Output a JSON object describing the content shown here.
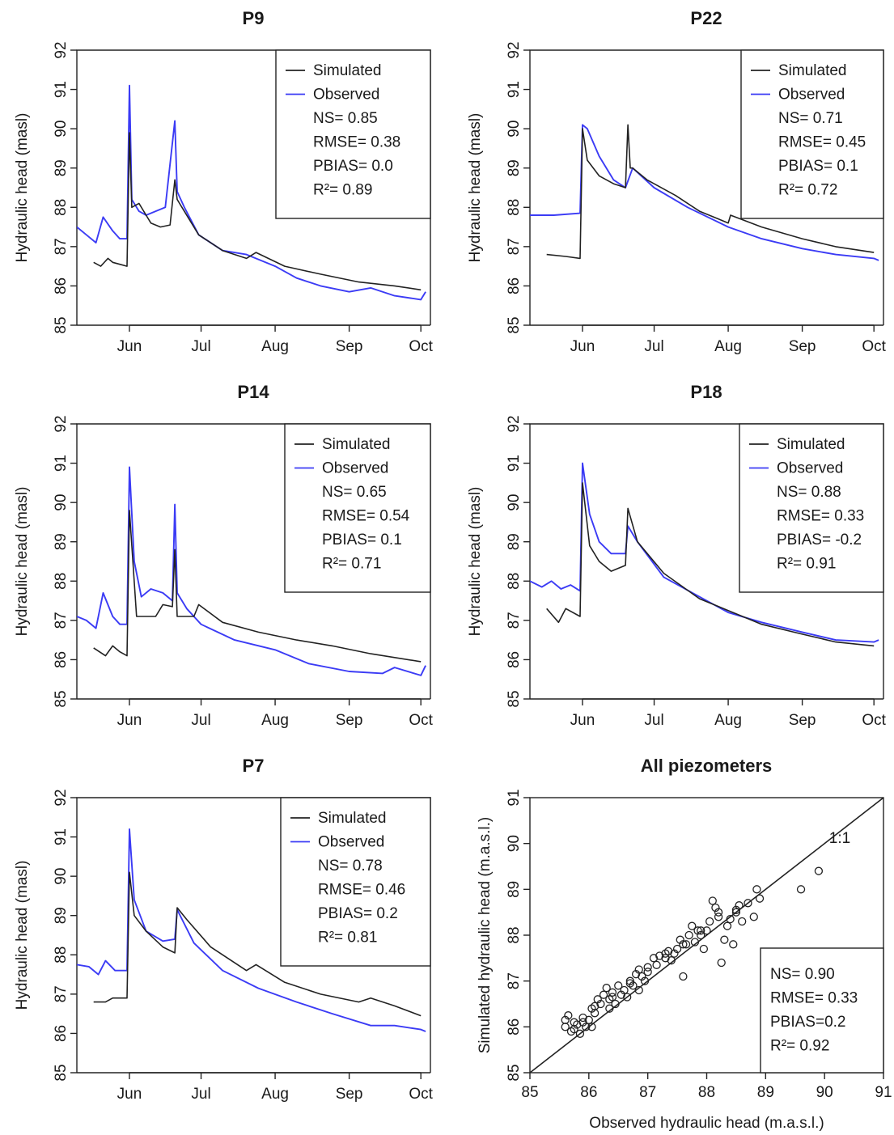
{
  "chart_data": [
    {
      "type": "line",
      "title": "P9",
      "ylabel": "Hydraulic head (masl)",
      "xlabel": "",
      "x_ticks": [
        "Jun",
        "Jul",
        "Aug",
        "Sep",
        "Oct"
      ],
      "ylim": [
        85,
        92
      ],
      "y_ticks": [
        "85",
        "86",
        "87",
        "88",
        "89",
        "90",
        "91",
        "92"
      ],
      "legend": [
        "Simulated",
        "Observed"
      ],
      "stats": [
        "NS= 0.85",
        "RMSE= 0.38",
        "PBIAS= 0.0",
        "R²= 0.89"
      ],
      "legend_position": "top-right",
      "colors": {
        "simulated": "#222222",
        "observed": "#3b3bf5"
      },
      "series": [
        {
          "name": "Simulated",
          "x": [
            "May 17",
            "May 20",
            "May 23",
            "May 25",
            "May 28",
            "May 31",
            "Jun 1",
            "Jun 2",
            "Jun 5",
            "Jun 8",
            "Jun 10",
            "Jun 14",
            "Jun 18",
            "Jun 20",
            "Jun 21",
            "Jun 23",
            "Jun 30",
            "Jul 10",
            "Jul 20",
            "Jul 24",
            "Aug 5",
            "Aug 20",
            "Sep 5",
            "Sep 20",
            "Oct 1"
          ],
          "y": [
            86.6,
            86.5,
            86.7,
            86.6,
            86.55,
            86.5,
            89.9,
            88.0,
            88.1,
            87.8,
            87.6,
            87.5,
            87.55,
            88.7,
            88.2,
            88.0,
            87.3,
            86.9,
            86.7,
            86.85,
            86.5,
            86.3,
            86.1,
            86.0,
            85.9
          ]
        },
        {
          "name": "Observed",
          "x": [
            "May 10",
            "May 14",
            "May 18",
            "May 21",
            "May 25",
            "May 28",
            "May 31",
            "Jun 1",
            "Jun 2",
            "Jun 5",
            "Jun 8",
            "Jun 12",
            "Jun 16",
            "Jun 20",
            "Jun 21",
            "Jun 24",
            "Jun 30",
            "Jul 10",
            "Jul 20",
            "Aug 1",
            "Aug 10",
            "Aug 20",
            "Sep 1",
            "Sep 10",
            "Sep 20",
            "Oct 1",
            "Oct 3"
          ],
          "y": [
            87.5,
            87.3,
            87.1,
            87.75,
            87.4,
            87.2,
            87.2,
            91.1,
            88.2,
            87.9,
            87.8,
            87.9,
            88.0,
            90.2,
            88.4,
            88.0,
            87.3,
            86.9,
            86.8,
            86.5,
            86.2,
            86.0,
            85.85,
            85.95,
            85.75,
            85.65,
            85.85
          ]
        }
      ]
    },
    {
      "type": "line",
      "title": "P22",
      "ylabel": "Hydraulic head (masl)",
      "xlabel": "",
      "x_ticks": [
        "Jun",
        "Jul",
        "Aug",
        "Sep",
        "Oct"
      ],
      "ylim": [
        85,
        92
      ],
      "y_ticks": [
        "85",
        "86",
        "87",
        "88",
        "89",
        "90",
        "91",
        "92"
      ],
      "legend": [
        "Simulated",
        "Observed"
      ],
      "stats": [
        "NS= 0.71",
        "RMSE= 0.45",
        "PBIAS= 0.1",
        "R²= 0.72"
      ],
      "legend_position": "top-right",
      "colors": {
        "simulated": "#222222",
        "observed": "#3b3bf5"
      },
      "series": [
        {
          "name": "Simulated",
          "x": [
            "May 17",
            "May 25",
            "May 31",
            "Jun 1",
            "Jun 3",
            "Jun 8",
            "Jun 14",
            "Jun 19",
            "Jun 20",
            "Jun 21",
            "Jun 22",
            "Jun 28",
            "Jul 10",
            "Jul 20",
            "Aug 1",
            "Aug 2",
            "Aug 15",
            "Sep 1",
            "Sep 15",
            "Oct 1"
          ],
          "y": [
            86.8,
            86.75,
            86.7,
            90.0,
            89.2,
            88.8,
            88.6,
            88.5,
            90.1,
            89.0,
            89.0,
            88.7,
            88.3,
            87.9,
            87.6,
            87.8,
            87.5,
            87.2,
            87.0,
            86.85
          ]
        },
        {
          "name": "Observed",
          "x": [
            "May 10",
            "May 20",
            "May 31",
            "Jun 1",
            "Jun 3",
            "Jun 8",
            "Jun 14",
            "Jun 19",
            "Jun 22",
            "Jul 1",
            "Jul 15",
            "Aug 1",
            "Aug 15",
            "Sep 1",
            "Sep 15",
            "Oct 1",
            "Oct 3"
          ],
          "y": [
            87.8,
            87.8,
            87.85,
            90.1,
            90.0,
            89.3,
            88.7,
            88.5,
            89.0,
            88.5,
            88.0,
            87.5,
            87.2,
            86.95,
            86.8,
            86.7,
            86.65
          ]
        }
      ]
    },
    {
      "type": "line",
      "title": "P14",
      "ylabel": "Hydraulic head (masl)",
      "xlabel": "",
      "x_ticks": [
        "Jun",
        "Jul",
        "Aug",
        "Sep",
        "Oct"
      ],
      "ylim": [
        85,
        92
      ],
      "y_ticks": [
        "85",
        "86",
        "87",
        "88",
        "89",
        "90",
        "91",
        "92"
      ],
      "legend": [
        "Simulated",
        "Observed"
      ],
      "stats": [
        "NS= 0.65",
        "RMSE= 0.54",
        "PBIAS= 0.1",
        "R²= 0.71"
      ],
      "legend_position": "top-right",
      "colors": {
        "simulated": "#222222",
        "observed": "#3b3bf5"
      },
      "series": [
        {
          "name": "Simulated",
          "x": [
            "May 17",
            "May 22",
            "May 25",
            "May 28",
            "May 31",
            "Jun 1",
            "Jun 4",
            "Jun 7",
            "Jun 12",
            "Jun 15",
            "Jun 19",
            "Jun 20",
            "Jun 21",
            "Jun 28",
            "Jun 30",
            "Jul 10",
            "Jul 25",
            "Aug 10",
            "Aug 25",
            "Sep 10",
            "Oct 1"
          ],
          "y": [
            86.3,
            86.1,
            86.35,
            86.2,
            86.1,
            89.8,
            87.1,
            87.1,
            87.1,
            87.4,
            87.35,
            88.8,
            87.1,
            87.1,
            87.4,
            86.95,
            86.7,
            86.5,
            86.35,
            86.15,
            85.95
          ]
        },
        {
          "name": "Observed",
          "x": [
            "May 10",
            "May 14",
            "May 18",
            "May 21",
            "May 25",
            "May 28",
            "May 31",
            "Jun 1",
            "Jun 3",
            "Jun 6",
            "Jun 10",
            "Jun 15",
            "Jun 19",
            "Jun 20",
            "Jun 21",
            "Jun 25",
            "Jul 1",
            "Jul 15",
            "Aug 1",
            "Aug 15",
            "Sep 1",
            "Sep 15",
            "Sep 20",
            "Oct 1",
            "Oct 3"
          ],
          "y": [
            87.1,
            87.0,
            86.8,
            87.7,
            87.1,
            86.9,
            86.9,
            90.9,
            88.5,
            87.6,
            87.8,
            87.7,
            87.5,
            89.95,
            87.7,
            87.3,
            86.9,
            86.5,
            86.25,
            85.9,
            85.7,
            85.65,
            85.8,
            85.6,
            85.85
          ]
        }
      ]
    },
    {
      "type": "line",
      "title": "P18",
      "ylabel": "Hydraulic head (masl)",
      "xlabel": "",
      "x_ticks": [
        "Jun",
        "Jul",
        "Aug",
        "Sep",
        "Oct"
      ],
      "ylim": [
        85,
        92
      ],
      "y_ticks": [
        "85",
        "86",
        "87",
        "88",
        "89",
        "90",
        "91",
        "92"
      ],
      "legend": [
        "Simulated",
        "Observed"
      ],
      "stats": [
        "NS= 0.88",
        "RMSE= 0.33",
        "PBIAS= -0.2",
        "R²= 0.91"
      ],
      "legend_position": "top-right",
      "colors": {
        "simulated": "#222222",
        "observed": "#3b3bf5"
      },
      "series": [
        {
          "name": "Simulated",
          "x": [
            "May 17",
            "May 22",
            "May 25",
            "May 31",
            "Jun 1",
            "Jun 4",
            "Jun 8",
            "Jun 13",
            "Jun 19",
            "Jun 20",
            "Jun 24",
            "Jul 5",
            "Jul 20",
            "Aug 1",
            "Aug 15",
            "Sep 1",
            "Sep 15",
            "Oct 1"
          ],
          "y": [
            87.3,
            86.95,
            87.3,
            87.1,
            90.5,
            88.9,
            88.5,
            88.25,
            88.4,
            89.85,
            89.0,
            88.2,
            87.55,
            87.25,
            86.9,
            86.65,
            86.45,
            86.35
          ]
        },
        {
          "name": "Observed",
          "x": [
            "May 10",
            "May 15",
            "May 19",
            "May 23",
            "May 27",
            "May 31",
            "Jun 1",
            "Jun 4",
            "Jun 8",
            "Jun 13",
            "Jun 19",
            "Jun 20",
            "Jun 24",
            "Jul 5",
            "Jul 20",
            "Aug 1",
            "Aug 15",
            "Sep 1",
            "Sep 15",
            "Oct 1",
            "Oct 3"
          ],
          "y": [
            88.0,
            87.85,
            88.0,
            87.8,
            87.9,
            87.75,
            91.0,
            89.7,
            89.0,
            88.7,
            88.7,
            89.4,
            89.0,
            88.1,
            87.6,
            87.2,
            86.95,
            86.7,
            86.5,
            86.45,
            86.5
          ]
        }
      ]
    },
    {
      "type": "line",
      "title": "P7",
      "ylabel": "Hydraulic head (masl)",
      "xlabel": "",
      "x_ticks": [
        "Jun",
        "Jul",
        "Aug",
        "Sep",
        "Oct"
      ],
      "ylim": [
        85,
        92
      ],
      "y_ticks": [
        "85",
        "86",
        "87",
        "88",
        "89",
        "90",
        "91",
        "92"
      ],
      "legend": [
        "Simulated",
        "Observed"
      ],
      "stats": [
        "NS= 0.78",
        "RMSE= 0.46",
        "PBIAS= 0.2",
        "R²= 0.81"
      ],
      "legend_position": "top-right",
      "colors": {
        "simulated": "#222222",
        "observed": "#3b3bf5"
      },
      "series": [
        {
          "name": "Simulated",
          "x": [
            "May 17",
            "May 22",
            "May 25",
            "May 31",
            "Jun 1",
            "Jun 3",
            "Jun 8",
            "Jun 15",
            "Jun 20",
            "Jun 21",
            "Jun 25",
            "Jul 5",
            "Jul 20",
            "Jul 24",
            "Aug 5",
            "Aug 20",
            "Sep 5",
            "Sep 10",
            "Sep 20",
            "Oct 1"
          ],
          "y": [
            86.8,
            86.8,
            86.9,
            86.9,
            90.1,
            89.0,
            88.6,
            88.2,
            88.05,
            89.2,
            88.9,
            88.2,
            87.6,
            87.75,
            87.3,
            87.0,
            86.8,
            86.9,
            86.7,
            86.45
          ]
        },
        {
          "name": "Observed",
          "x": [
            "May 10",
            "May 15",
            "May 19",
            "May 22",
            "May 26",
            "May 31",
            "Jun 1",
            "Jun 3",
            "Jun 8",
            "Jun 15",
            "Jun 20",
            "Jun 21",
            "Jun 28",
            "Jul 10",
            "Jul 25",
            "Aug 10",
            "Aug 25",
            "Sep 10",
            "Sep 20",
            "Oct 1",
            "Oct 3"
          ],
          "y": [
            87.75,
            87.7,
            87.5,
            87.85,
            87.6,
            87.6,
            91.2,
            89.4,
            88.6,
            88.35,
            88.4,
            89.15,
            88.3,
            87.6,
            87.15,
            86.8,
            86.5,
            86.2,
            86.2,
            86.1,
            86.05
          ]
        }
      ]
    },
    {
      "type": "scatter",
      "title": "All piezometers",
      "xlabel": "Observed hydraulic head (m.a.s.l.)",
      "ylabel": "Simulated hydraulic head (m.a.s.l.)",
      "xlim": [
        85,
        91
      ],
      "ylim": [
        85,
        91
      ],
      "x_ticks": [
        "85",
        "86",
        "87",
        "88",
        "89",
        "90",
        "91"
      ],
      "y_ticks": [
        "85",
        "86",
        "87",
        "88",
        "89",
        "90",
        "91"
      ],
      "reference_line_label": "1:1",
      "stats": [
        "NS= 0.90",
        "RMSE= 0.33",
        "PBIAS=0.2",
        "R²= 0.92"
      ],
      "legend_position": "bottom-right",
      "points": [
        [
          85.6,
          86.0
        ],
        [
          85.65,
          86.25
        ],
        [
          85.7,
          85.9
        ],
        [
          85.75,
          86.1
        ],
        [
          85.8,
          86.05
        ],
        [
          85.85,
          85.85
        ],
        [
          85.9,
          86.2
        ],
        [
          85.95,
          86.0
        ],
        [
          86.0,
          86.15
        ],
        [
          86.05,
          86.4
        ],
        [
          86.1,
          86.3
        ],
        [
          86.15,
          86.6
        ],
        [
          86.2,
          86.5
        ],
        [
          86.25,
          86.7
        ],
        [
          86.3,
          86.85
        ],
        [
          86.35,
          86.6
        ],
        [
          86.4,
          86.75
        ],
        [
          86.45,
          86.5
        ],
        [
          86.5,
          86.9
        ],
        [
          86.55,
          86.7
        ],
        [
          86.6,
          86.8
        ],
        [
          86.65,
          86.65
        ],
        [
          86.7,
          87.0
        ],
        [
          86.75,
          86.9
        ],
        [
          86.8,
          87.15
        ],
        [
          86.85,
          87.25
        ],
        [
          86.9,
          87.1
        ],
        [
          86.95,
          87.0
        ],
        [
          87.0,
          87.3
        ],
        [
          87.1,
          87.5
        ],
        [
          87.15,
          87.35
        ],
        [
          87.2,
          87.55
        ],
        [
          87.3,
          87.5
        ],
        [
          87.35,
          87.65
        ],
        [
          87.4,
          87.45
        ],
        [
          87.45,
          87.6
        ],
        [
          87.5,
          87.7
        ],
        [
          87.55,
          87.9
        ],
        [
          87.6,
          87.1
        ],
        [
          87.65,
          87.8
        ],
        [
          87.7,
          88.0
        ],
        [
          87.75,
          88.2
        ],
        [
          87.8,
          87.85
        ],
        [
          87.85,
          88.1
        ],
        [
          87.9,
          88.0
        ],
        [
          87.95,
          87.7
        ],
        [
          88.0,
          88.1
        ],
        [
          88.05,
          88.3
        ],
        [
          88.1,
          88.75
        ],
        [
          88.15,
          88.6
        ],
        [
          88.2,
          88.4
        ],
        [
          88.25,
          87.4
        ],
        [
          88.3,
          87.9
        ],
        [
          88.35,
          88.2
        ],
        [
          88.4,
          88.35
        ],
        [
          88.45,
          87.8
        ],
        [
          88.5,
          88.5
        ],
        [
          88.55,
          88.65
        ],
        [
          88.6,
          88.3
        ],
        [
          88.7,
          88.7
        ],
        [
          88.8,
          88.4
        ],
        [
          88.85,
          89.0
        ],
        [
          88.9,
          88.8
        ],
        [
          89.6,
          89.0
        ],
        [
          89.9,
          89.4
        ],
        [
          85.6,
          86.15
        ],
        [
          85.9,
          86.1
        ],
        [
          86.1,
          86.45
        ],
        [
          86.4,
          86.65
        ],
        [
          86.7,
          86.95
        ],
        [
          87.0,
          87.2
        ],
        [
          87.3,
          87.6
        ],
        [
          87.6,
          87.8
        ],
        [
          87.9,
          88.1
        ],
        [
          88.2,
          88.5
        ],
        [
          88.5,
          88.55
        ],
        [
          85.75,
          85.95
        ],
        [
          86.05,
          86.0
        ],
        [
          86.35,
          86.4
        ],
        [
          86.85,
          86.8
        ]
      ]
    }
  ]
}
